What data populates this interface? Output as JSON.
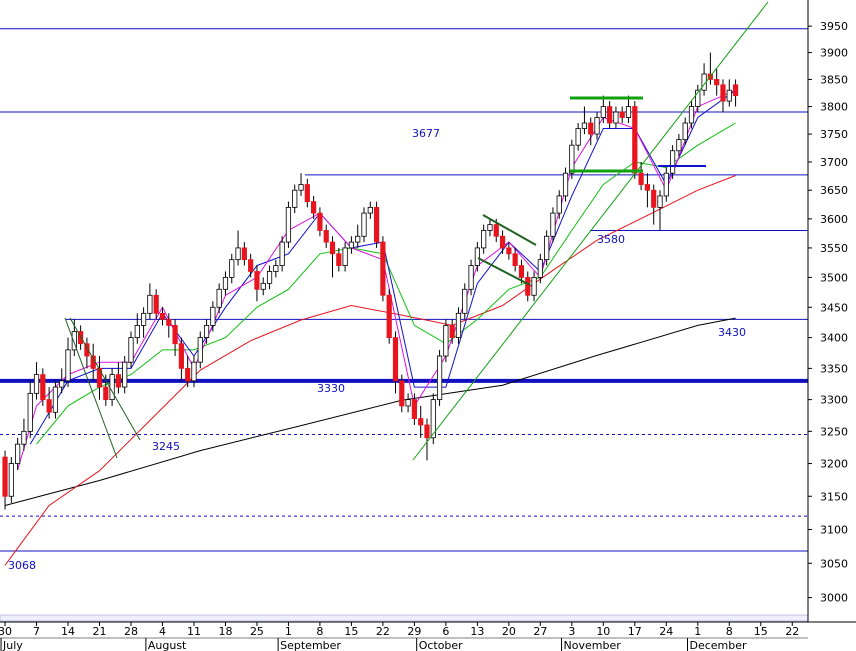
{
  "chart_data": {
    "type": "candlestick",
    "log_scale": true,
    "xlim": [
      -0.8,
      127.5
    ],
    "ylim": [
      2975,
      4000
    ],
    "yticks": [
      3000,
      3050,
      3100,
      3150,
      3200,
      3250,
      3300,
      3350,
      3400,
      3450,
      3500,
      3550,
      3600,
      3650,
      3700,
      3750,
      3800,
      3850,
      3900,
      3950
    ],
    "xticks": [
      {
        "value": 0,
        "label": "30"
      },
      {
        "value": 5,
        "label": "7"
      },
      {
        "value": 10,
        "label": "14"
      },
      {
        "value": 15,
        "label": "21"
      },
      {
        "value": 20,
        "label": "28"
      },
      {
        "value": 25,
        "label": "4"
      },
      {
        "value": 30,
        "label": "11"
      },
      {
        "value": 35,
        "label": "18"
      },
      {
        "value": 40,
        "label": "25"
      },
      {
        "value": 45,
        "label": "1"
      },
      {
        "value": 50,
        "label": "8"
      },
      {
        "value": 55,
        "label": "15"
      },
      {
        "value": 60,
        "label": "22"
      },
      {
        "value": 65,
        "label": "29"
      },
      {
        "value": 70,
        "label": "6"
      },
      {
        "value": 75,
        "label": "13"
      },
      {
        "value": 80,
        "label": "20"
      },
      {
        "value": 85,
        "label": "27"
      },
      {
        "value": 90,
        "label": "3"
      },
      {
        "value": 95,
        "label": "10"
      },
      {
        "value": 100,
        "label": "17"
      },
      {
        "value": 105,
        "label": "24"
      },
      {
        "value": 110,
        "label": "1"
      },
      {
        "value": 115,
        "label": "8"
      },
      {
        "value": 120,
        "label": "15"
      },
      {
        "value": 125,
        "label": "22"
      }
    ],
    "month_labels": [
      {
        "value": 0,
        "label": "July"
      },
      {
        "value": 23,
        "label": "August"
      },
      {
        "value": 44,
        "label": "September"
      },
      {
        "value": 66,
        "label": "October"
      },
      {
        "value": 89,
        "label": "November"
      },
      {
        "value": 109,
        "label": "December"
      }
    ],
    "up_color": "#ffffff",
    "down_color": "#e8141e",
    "ohlc": [
      [
        3210,
        3220,
        3130,
        3150
      ],
      [
        3150,
        3210,
        3140,
        3200
      ],
      [
        3200,
        3240,
        3190,
        3230
      ],
      [
        3230,
        3270,
        3220,
        3250
      ],
      [
        3250,
        3330,
        3240,
        3310
      ],
      [
        3310,
        3360,
        3300,
        3340
      ],
      [
        3340,
        3350,
        3290,
        3300
      ],
      [
        3300,
        3320,
        3270,
        3280
      ],
      [
        3280,
        3330,
        3270,
        3320
      ],
      [
        3320,
        3350,
        3310,
        3330
      ],
      [
        3330,
        3400,
        3320,
        3380
      ],
      [
        3380,
        3430,
        3370,
        3410
      ],
      [
        3410,
        3420,
        3380,
        3390
      ],
      [
        3390,
        3400,
        3350,
        3370
      ],
      [
        3370,
        3390,
        3330,
        3350
      ],
      [
        3350,
        3370,
        3300,
        3320
      ],
      [
        3320,
        3340,
        3290,
        3300
      ],
      [
        3300,
        3350,
        3290,
        3340
      ],
      [
        3340,
        3360,
        3310,
        3320
      ],
      [
        3320,
        3370,
        3310,
        3360
      ],
      [
        3360,
        3410,
        3350,
        3400
      ],
      [
        3400,
        3440,
        3390,
        3420
      ],
      [
        3420,
        3450,
        3400,
        3440
      ],
      [
        3440,
        3490,
        3430,
        3470
      ],
      [
        3470,
        3480,
        3430,
        3440
      ],
      [
        3440,
        3450,
        3420,
        3430
      ],
      [
        3430,
        3440,
        3400,
        3420
      ],
      [
        3420,
        3430,
        3370,
        3390
      ],
      [
        3390,
        3400,
        3330,
        3350
      ],
      [
        3350,
        3370,
        3320,
        3330
      ],
      [
        3330,
        3370,
        3320,
        3360
      ],
      [
        3360,
        3410,
        3350,
        3400
      ],
      [
        3400,
        3430,
        3390,
        3420
      ],
      [
        3420,
        3460,
        3410,
        3450
      ],
      [
        3450,
        3490,
        3440,
        3480
      ],
      [
        3480,
        3510,
        3470,
        3500
      ],
      [
        3500,
        3540,
        3490,
        3530
      ],
      [
        3530,
        3580,
        3520,
        3550
      ],
      [
        3550,
        3560,
        3520,
        3530
      ],
      [
        3530,
        3540,
        3500,
        3510
      ],
      [
        3510,
        3520,
        3460,
        3480
      ],
      [
        3480,
        3500,
        3470,
        3490
      ],
      [
        3490,
        3520,
        3480,
        3510
      ],
      [
        3510,
        3530,
        3500,
        3520
      ],
      [
        3520,
        3570,
        3510,
        3560
      ],
      [
        3560,
        3630,
        3550,
        3620
      ],
      [
        3620,
        3660,
        3610,
        3650
      ],
      [
        3650,
        3680,
        3640,
        3660
      ],
      [
        3660,
        3670,
        3620,
        3630
      ],
      [
        3630,
        3640,
        3600,
        3610
      ],
      [
        3610,
        3620,
        3570,
        3580
      ],
      [
        3580,
        3590,
        3550,
        3560
      ],
      [
        3560,
        3570,
        3500,
        3540
      ],
      [
        3540,
        3550,
        3510,
        3520
      ],
      [
        3520,
        3560,
        3510,
        3550
      ],
      [
        3550,
        3570,
        3540,
        3560
      ],
      [
        3560,
        3590,
        3550,
        3570
      ],
      [
        3570,
        3620,
        3560,
        3610
      ],
      [
        3610,
        3630,
        3600,
        3620
      ],
      [
        3620,
        3630,
        3550,
        3560
      ],
      [
        3560,
        3570,
        3460,
        3470
      ],
      [
        3470,
        3480,
        3390,
        3400
      ],
      [
        3400,
        3410,
        3310,
        3330
      ],
      [
        3330,
        3340,
        3280,
        3290
      ],
      [
        3290,
        3310,
        3280,
        3300
      ],
      [
        3300,
        3310,
        3260,
        3270
      ],
      [
        3270,
        3290,
        3240,
        3260
      ],
      [
        3260,
        3270,
        3205,
        3240
      ],
      [
        3240,
        3310,
        3230,
        3300
      ],
      [
        3300,
        3380,
        3290,
        3370
      ],
      [
        3370,
        3430,
        3360,
        3420
      ],
      [
        3420,
        3430,
        3390,
        3400
      ],
      [
        3400,
        3450,
        3390,
        3440
      ],
      [
        3440,
        3490,
        3430,
        3480
      ],
      [
        3480,
        3530,
        3470,
        3520
      ],
      [
        3520,
        3560,
        3510,
        3550
      ],
      [
        3550,
        3590,
        3540,
        3580
      ],
      [
        3580,
        3600,
        3570,
        3590
      ],
      [
        3590,
        3600,
        3560,
        3570
      ],
      [
        3570,
        3580,
        3540,
        3550
      ],
      [
        3550,
        3560,
        3530,
        3540
      ],
      [
        3540,
        3550,
        3510,
        3520
      ],
      [
        3520,
        3530,
        3490,
        3500
      ],
      [
        3500,
        3510,
        3460,
        3470
      ],
      [
        3470,
        3510,
        3460,
        3500
      ],
      [
        3500,
        3540,
        3490,
        3530
      ],
      [
        3530,
        3580,
        3520,
        3570
      ],
      [
        3570,
        3620,
        3560,
        3610
      ],
      [
        3610,
        3650,
        3600,
        3640
      ],
      [
        3640,
        3690,
        3630,
        3680
      ],
      [
        3680,
        3740,
        3670,
        3730
      ],
      [
        3730,
        3770,
        3720,
        3760
      ],
      [
        3760,
        3800,
        3750,
        3770
      ],
      [
        3770,
        3780,
        3730,
        3750
      ],
      [
        3750,
        3790,
        3740,
        3780
      ],
      [
        3780,
        3820,
        3770,
        3800
      ],
      [
        3800,
        3810,
        3760,
        3770
      ],
      [
        3770,
        3800,
        3760,
        3790
      ],
      [
        3790,
        3800,
        3770,
        3780
      ],
      [
        3780,
        3820,
        3770,
        3800
      ],
      [
        3800,
        3810,
        3670,
        3680
      ],
      [
        3680,
        3700,
        3650,
        3660
      ],
      [
        3660,
        3680,
        3620,
        3650
      ],
      [
        3650,
        3660,
        3590,
        3620
      ],
      [
        3620,
        3650,
        3580,
        3640
      ],
      [
        3640,
        3690,
        3630,
        3680
      ],
      [
        3680,
        3730,
        3670,
        3720
      ],
      [
        3720,
        3750,
        3710,
        3740
      ],
      [
        3740,
        3780,
        3730,
        3770
      ],
      [
        3770,
        3810,
        3760,
        3800
      ],
      [
        3800,
        3840,
        3790,
        3830
      ],
      [
        3830,
        3880,
        3820,
        3860
      ],
      [
        3860,
        3900,
        3840,
        3850
      ],
      [
        3850,
        3870,
        3820,
        3840
      ],
      [
        3840,
        3850,
        3790,
        3810
      ],
      [
        3810,
        3850,
        3800,
        3830
      ],
      [
        3840,
        3850,
        3800,
        3820
      ]
    ],
    "series": [
      {
        "color": "#000000",
        "x": [
          0,
          15,
          31,
          47,
          63,
          79,
          94,
          110,
          116
        ],
        "values": [
          3136,
          3174,
          3220,
          3259,
          3299,
          3323,
          3371,
          3420,
          3432
        ]
      },
      {
        "color": "#e8141e",
        "x": [
          0,
          7,
          15,
          23,
          31,
          39,
          47,
          55,
          63,
          71,
          79,
          87,
          94,
          102,
          110,
          116
        ],
        "values": [
          3047,
          3136,
          3189,
          3267,
          3347,
          3395,
          3429,
          3453,
          3437,
          3420,
          3453,
          3512,
          3563,
          3606,
          3650,
          3676
        ]
      },
      {
        "color": "#10c010",
        "x": [
          5,
          10,
          15,
          20,
          25,
          30,
          35,
          40,
          45,
          50,
          55,
          60,
          65,
          70,
          75,
          80,
          85,
          90,
          95,
          100,
          105,
          110,
          116
        ],
        "values": [
          3230,
          3290,
          3320,
          3340,
          3380,
          3380,
          3400,
          3450,
          3480,
          3540,
          3550,
          3540,
          3420,
          3390,
          3430,
          3480,
          3500,
          3580,
          3660,
          3700,
          3690,
          3730,
          3770
        ]
      },
      {
        "color": "#1010d0",
        "x": [
          4,
          10,
          15,
          20,
          25,
          30,
          35,
          40,
          45,
          50,
          55,
          60,
          65,
          70,
          75,
          80,
          85,
          90,
          95,
          100,
          105,
          110,
          116
        ],
        "values": [
          3230,
          3330,
          3350,
          3350,
          3440,
          3370,
          3450,
          3520,
          3540,
          3610,
          3550,
          3560,
          3320,
          3320,
          3490,
          3560,
          3510,
          3640,
          3760,
          3760,
          3660,
          3780,
          3830
        ]
      },
      {
        "color": "#e010e0",
        "x": [
          2,
          5,
          10,
          15,
          20,
          25,
          30,
          35,
          40,
          45,
          50,
          55,
          60,
          65,
          70,
          75,
          80,
          85,
          90,
          95,
          100,
          105,
          110,
          116
        ],
        "values": [
          3190,
          3290,
          3340,
          3360,
          3360,
          3450,
          3350,
          3470,
          3500,
          3580,
          3610,
          3550,
          3530,
          3290,
          3370,
          3520,
          3560,
          3500,
          3690,
          3780,
          3760,
          3650,
          3800,
          3830
        ]
      }
    ],
    "labeled_levels": [
      3677,
      3580,
      3430,
      3330,
      3245,
      3068
    ],
    "other_levels": [
      3945,
      3790,
      3120
    ],
    "level_color": "#1010c0"
  }
}
